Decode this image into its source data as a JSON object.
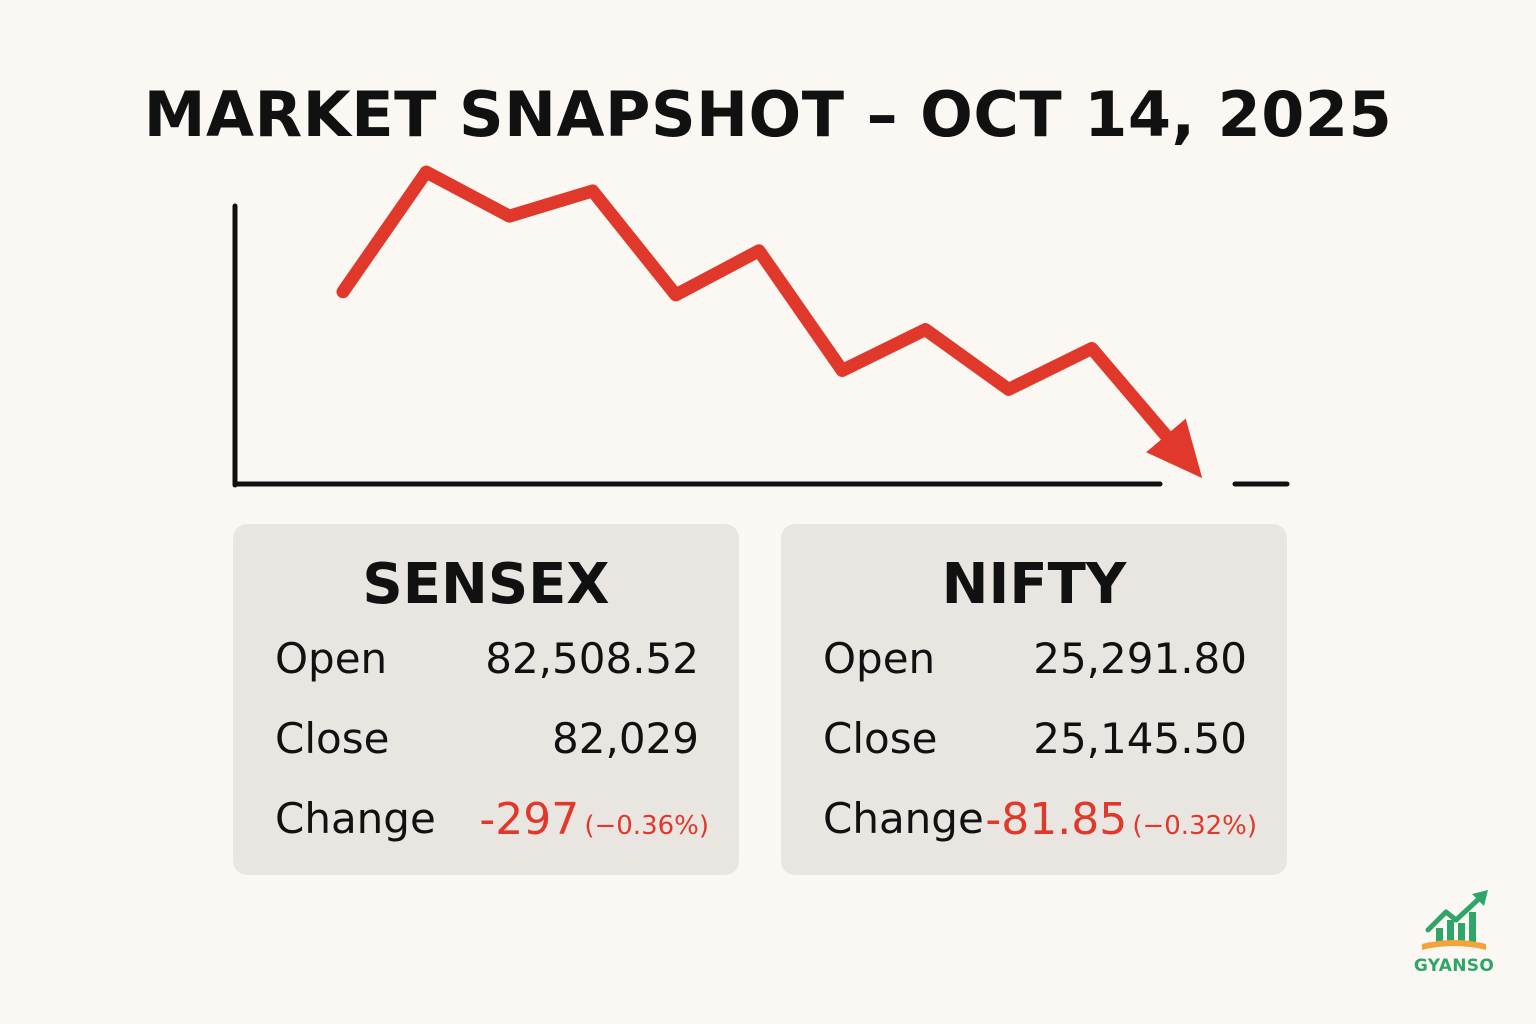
{
  "title": "MARKET SNAPSHOT – OCT 14, 2025",
  "chart_data": {
    "type": "line",
    "title": "MARKET SNAPSHOT – OCT 14, 2025",
    "xlabel": "",
    "ylabel": "",
    "grid": false,
    "trend": "down",
    "series": [
      {
        "values": [
          55,
          93,
          79,
          87,
          54,
          68,
          30,
          43,
          24,
          37,
          6
        ]
      }
    ],
    "ylim": [
      0,
      100
    ],
    "line_color": "#e0392b"
  },
  "cards": {
    "sensex": {
      "name": "SENSEX",
      "open_label": "Open",
      "open_value": "82,508.52",
      "close_label": "Close",
      "close_value": "82,029",
      "change_label": "Change",
      "change_value": "-297",
      "change_pct": "(−0.36%)"
    },
    "nifty": {
      "name": "NIFTY",
      "open_label": "Open",
      "open_value": "25,291.80",
      "close_label": "Close",
      "close_value": "25,145.50",
      "change_label": "Change",
      "change_value": "-81.85",
      "change_pct": "(−0.32%)"
    }
  },
  "logo": {
    "text": "GYANSO",
    "icon": "growth-arrow-book-icon"
  },
  "colors": {
    "negative": "#e0392b",
    "background": "#fbf8f3",
    "card": "#e9e6e1",
    "brand": "#2fa56a"
  }
}
